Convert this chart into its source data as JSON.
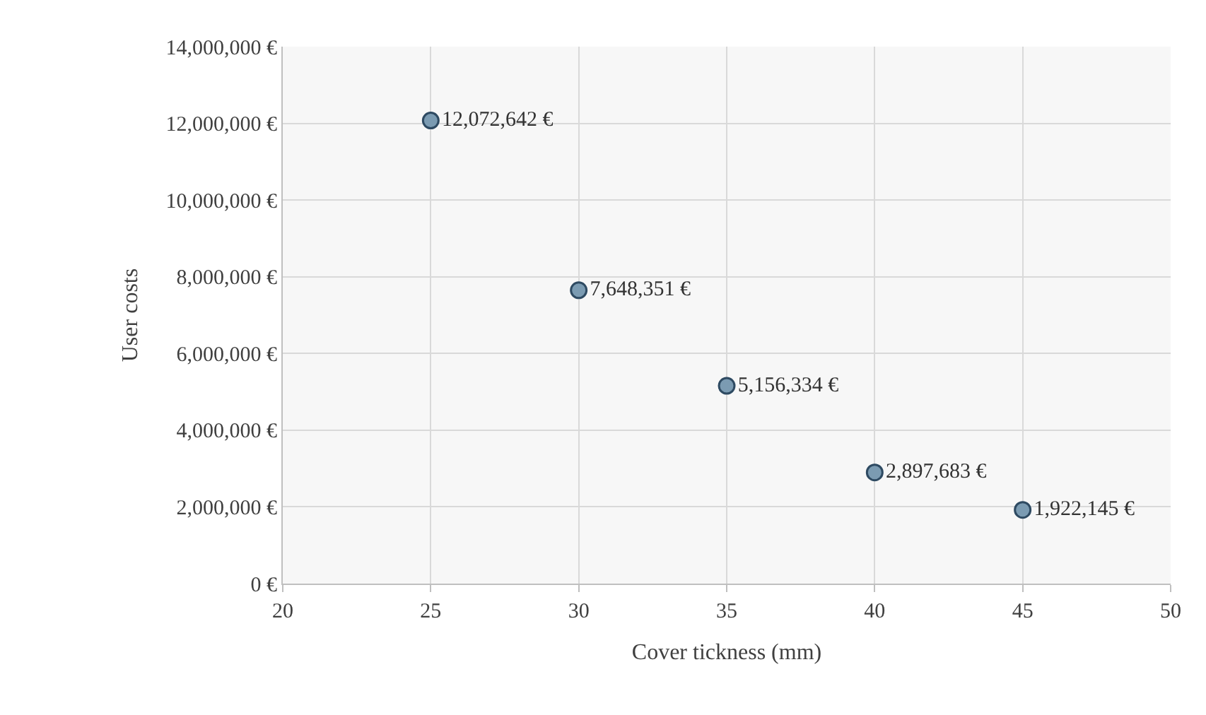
{
  "chart_data": {
    "type": "scatter",
    "xlabel": "Cover tickness (mm)",
    "ylabel": "User costs",
    "x": [
      25,
      30,
      35,
      40,
      45
    ],
    "series": [
      {
        "color": "#7b9bb2",
        "values": [
          12072642,
          7648351,
          5156334,
          2897683,
          1922145
        ],
        "value_labels": [
          "12,072,642 €",
          "7,648,351 €",
          "5,156,334 €",
          "2,897,683 €",
          "1,922,145 €"
        ]
      }
    ],
    "xlim": [
      20,
      50
    ],
    "xticks": [
      20,
      25,
      30,
      35,
      40,
      45,
      50
    ],
    "ylim": [
      0,
      14000000
    ],
    "yticks": [
      {
        "value": 0,
        "label": "0 €"
      },
      {
        "value": 2000000,
        "label": "2,000,000 €"
      },
      {
        "value": 4000000,
        "label": "4,000,000 €"
      },
      {
        "value": 6000000,
        "label": "6,000,000 €"
      },
      {
        "value": 8000000,
        "label": "8,000,000 €"
      },
      {
        "value": 10000000,
        "label": "10,000,000 €"
      },
      {
        "value": 12000000,
        "label": "12,000,000 €"
      },
      {
        "value": 14000000,
        "label": "14,000,000 €"
      }
    ],
    "grid": true,
    "marker": "circle"
  }
}
